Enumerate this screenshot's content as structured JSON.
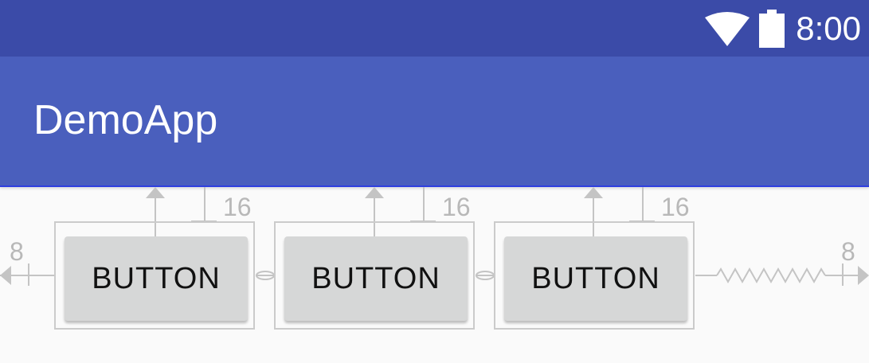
{
  "status_bar": {
    "time": "8:00",
    "icons": [
      "wifi-icon",
      "battery-icon"
    ]
  },
  "app_bar": {
    "title": "DemoApp"
  },
  "buttons": [
    {
      "label": "BUTTON",
      "top_margin": "16"
    },
    {
      "label": "BUTTON",
      "top_margin": "16"
    },
    {
      "label": "BUTTON",
      "top_margin": "16"
    }
  ],
  "constraints": {
    "start_margin": "8",
    "end_margin": "8"
  },
  "colors": {
    "status_bar": "#3b4ba8",
    "app_bar": "#4a5fbd",
    "background": "#fafafa",
    "button": "#d6d7d7",
    "constraint_line": "#c4c4c4"
  }
}
